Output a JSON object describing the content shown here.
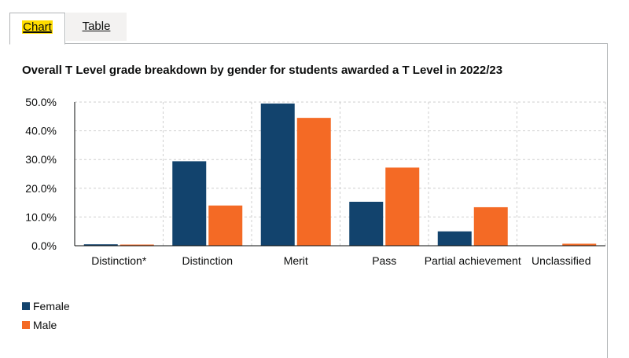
{
  "tabs": {
    "chart": "Chart",
    "table": "Table"
  },
  "chart_data": {
    "type": "bar",
    "title": "Overall T Level grade breakdown by gender for students awarded a T Level in 2022/23",
    "categories": [
      "Distinction*",
      "Distinction",
      "Merit",
      "Pass",
      "Partial achievement",
      "Unclassified"
    ],
    "series": [
      {
        "name": "Female",
        "color": "#12436d",
        "values": [
          0.5,
          29.4,
          49.5,
          15.3,
          5.0,
          0.0
        ]
      },
      {
        "name": "Male",
        "color": "#f46a25",
        "values": [
          0.1,
          14.0,
          44.5,
          27.2,
          13.4,
          0.7
        ]
      }
    ],
    "ylim": [
      0,
      50
    ],
    "yticks": [
      "0.0%",
      "10.0%",
      "20.0%",
      "30.0%",
      "40.0%",
      "50.0%"
    ],
    "grid": true,
    "legend_position": "bottom-left"
  }
}
